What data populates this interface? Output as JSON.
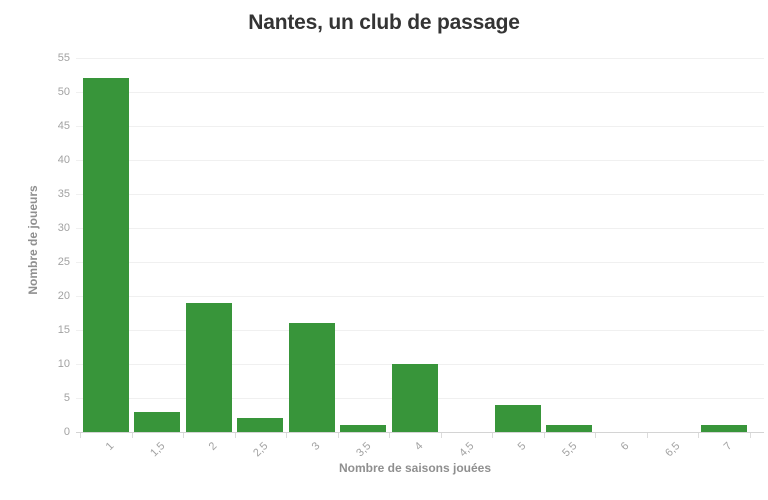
{
  "chart_data": {
    "type": "bar",
    "title": "Nantes, un club de passage",
    "xlabel": "Nombre de saisons jouées",
    "ylabel": "Nombre de joueurs",
    "categories": [
      "1",
      "1,5",
      "2",
      "2,5",
      "3",
      "3,5",
      "4",
      "4,5",
      "5",
      "5,5",
      "6",
      "6,5",
      "7"
    ],
    "values": [
      52,
      3,
      19,
      2,
      16,
      1,
      10,
      0,
      4,
      1,
      0,
      0,
      1
    ],
    "ylim": [
      0,
      55
    ],
    "yticks": [
      0,
      5,
      10,
      15,
      20,
      25,
      30,
      35,
      40,
      45,
      50,
      55
    ],
    "grid": "horizontal",
    "legend": "none",
    "colors": {
      "bar": "#38953a",
      "title": "#343434",
      "axis_title": "#8f8f8f",
      "tick_label": "#a2a2a2",
      "gridline": "#f0f0f0",
      "axis_line": "#d4d4d4",
      "background": "#ffffff"
    }
  }
}
